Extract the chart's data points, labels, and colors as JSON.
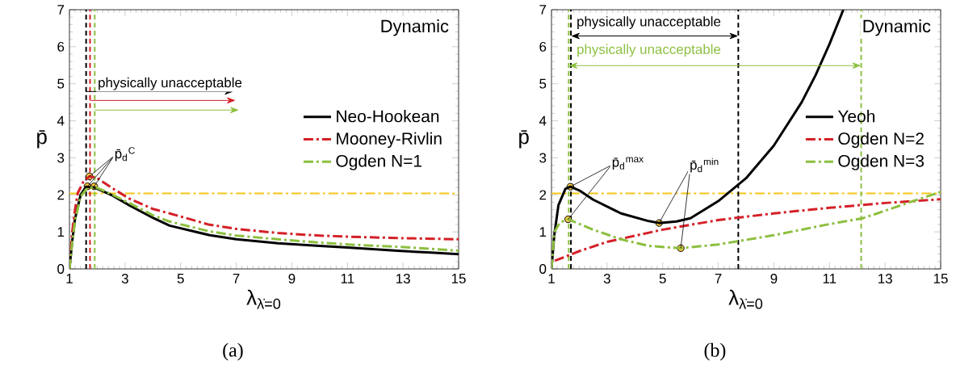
{
  "chart_data": [
    {
      "type": "line",
      "xlabel": "λ$_{λ̇=0}$",
      "ylabel": "p̄",
      "xlim": [
        1,
        15
      ],
      "ylim": [
        0,
        7
      ],
      "xticks": [
        1,
        3,
        5,
        7,
        9,
        11,
        13,
        15
      ],
      "yticks": [
        0,
        1,
        2,
        3,
        4,
        5,
        6,
        7
      ],
      "grid": false,
      "legend": "right",
      "series": [
        {
          "name": "Neo-Hookean",
          "color": "#000000",
          "line_style": "solid",
          "x": [
            1,
            1.1,
            1.2,
            1.4,
            1.6,
            1.9,
            2.5,
            3.15,
            4,
            4.6,
            6.05,
            7,
            8.5,
            10,
            11,
            12.8,
            14,
            15
          ],
          "values": [
            0,
            0.75,
            1.35,
            2.0,
            2.22,
            2.2,
            2.0,
            1.72,
            1.38,
            1.17,
            0.91,
            0.8,
            0.69,
            0.62,
            0.58,
            0.49,
            0.44,
            0.4
          ]
        },
        {
          "name": "Mooney-Rivlin",
          "color": "#d42027",
          "line_style": "dashdot",
          "x": [
            1,
            1.1,
            1.2,
            1.3,
            1.5,
            1.72,
            2,
            2.5,
            3.15,
            4,
            4.6,
            6,
            7,
            8.5,
            10,
            11,
            13,
            15
          ],
          "values": [
            0,
            1.0,
            1.6,
            2.05,
            2.35,
            2.5,
            2.45,
            2.2,
            1.9,
            1.62,
            1.5,
            1.2,
            1.08,
            0.97,
            0.9,
            0.87,
            0.83,
            0.8
          ]
        },
        {
          "name": "Ogden N=1",
          "color": "#8cbf3f",
          "line_style": "dashdot",
          "x": [
            1,
            1.1,
            1.2,
            1.4,
            1.6,
            1.9,
            2.5,
            3.15,
            4,
            4.6,
            6,
            7,
            8.5,
            10,
            11,
            13,
            15
          ],
          "values": [
            0,
            0.7,
            1.3,
            1.95,
            2.15,
            2.22,
            2.02,
            1.78,
            1.45,
            1.28,
            1.02,
            0.9,
            0.8,
            0.71,
            0.66,
            0.59,
            0.49
          ]
        },
        {
          "type": "scatter",
          "color": "#f7c843",
          "x": [
            1.65,
            1.72,
            1.89
          ],
          "values": [
            2.23,
            2.5,
            2.23
          ]
        }
      ],
      "ref_lines": [
        {
          "axis": "y",
          "value": 2.04,
          "color": "#f5c518",
          "line_style": "dashdot"
        },
        {
          "axis": "x",
          "value": 1.6,
          "color": "#000000",
          "line_style": "dashed"
        },
        {
          "axis": "x",
          "value": 1.74,
          "color": "#d42027",
          "line_style": "dashed"
        },
        {
          "axis": "x",
          "value": 1.91,
          "color": "#8cbf3f",
          "line_style": "dashed"
        }
      ],
      "annotations": [
        "Dynamic",
        "(a)",
        "physically unacceptable",
        {
          "text": "p̄$_{d}$$^{C}$",
          "x": 1.72,
          "y": 2.5
        }
      ]
    },
    {
      "type": "line",
      "xlabel": "λ$_{λ̇=0}$",
      "ylabel": "p̄",
      "xlim": [
        1,
        15
      ],
      "ylim": [
        0,
        7
      ],
      "xticks": [
        1,
        3,
        5,
        7,
        9,
        11,
        13,
        15
      ],
      "yticks": [
        0,
        1,
        2,
        3,
        4,
        5,
        6,
        7
      ],
      "grid": false,
      "legend": "right",
      "series": [
        {
          "name": "Yeoh",
          "color": "#000000",
          "line_style": "solid",
          "x": [
            1,
            1.1,
            1.25,
            1.5,
            1.68,
            2,
            2.5,
            3.5,
            4.5,
            4.87,
            5.5,
            6,
            7,
            8,
            9,
            10,
            10.5,
            11,
            11.5
          ],
          "values": [
            0,
            0.91,
            1.72,
            2.16,
            2.22,
            2.12,
            1.87,
            1.5,
            1.29,
            1.24,
            1.28,
            1.37,
            1.83,
            2.45,
            3.33,
            4.5,
            5.23,
            6.07,
            7.0
          ]
        },
        {
          "name": "Ogden N=2",
          "color": "#d42027",
          "line_style": "dashdot",
          "x": [
            1.12,
            2,
            3,
            5,
            7,
            9,
            11,
            13,
            15
          ],
          "values": [
            0.22,
            0.48,
            0.73,
            1.06,
            1.32,
            1.5,
            1.65,
            1.78,
            1.88
          ]
        },
        {
          "name": "Ogden N=3",
          "color": "#8cbf3f",
          "line_style": "dashdot",
          "x": [
            1,
            1.1,
            1.3,
            1.6,
            2.5,
            3.5,
            4.5,
            5.65,
            7,
            9,
            11,
            12.2,
            13,
            14,
            15
          ],
          "values": [
            0,
            0.99,
            1.25,
            1.34,
            1.06,
            0.8,
            0.62,
            0.56,
            0.66,
            0.91,
            1.21,
            1.37,
            1.57,
            1.83,
            2.08
          ]
        },
        {
          "type": "scatter",
          "color": "#f7c843",
          "x": [
            1.68,
            1.6,
            4.87,
            5.65
          ],
          "values": [
            2.22,
            1.34,
            1.24,
            0.56
          ]
        }
      ],
      "ref_lines": [
        {
          "axis": "y",
          "value": 2.04,
          "color": "#f5c518",
          "line_style": "dashdot"
        },
        {
          "axis": "x",
          "value": 1.62,
          "color": "#8cbf3f",
          "line_style": "dashed"
        },
        {
          "axis": "x",
          "value": 1.7,
          "color": "#000000",
          "line_style": "dashed"
        },
        {
          "axis": "x",
          "value": 7.72,
          "color": "#000000",
          "line_style": "dashed"
        },
        {
          "axis": "x",
          "value": 12.14,
          "color": "#8cbf3f",
          "line_style": "dashed"
        }
      ],
      "annotations": [
        "Dynamic",
        "(b)",
        "physically unacceptable",
        "physically unacceptable",
        {
          "text": "p̄$_{d}$$^{max}$",
          "x": 1.68,
          "y": 2.22
        },
        {
          "text": "p̄$_{d}$$^{min}$",
          "x": 4.87,
          "y": 1.24
        }
      ]
    }
  ]
}
